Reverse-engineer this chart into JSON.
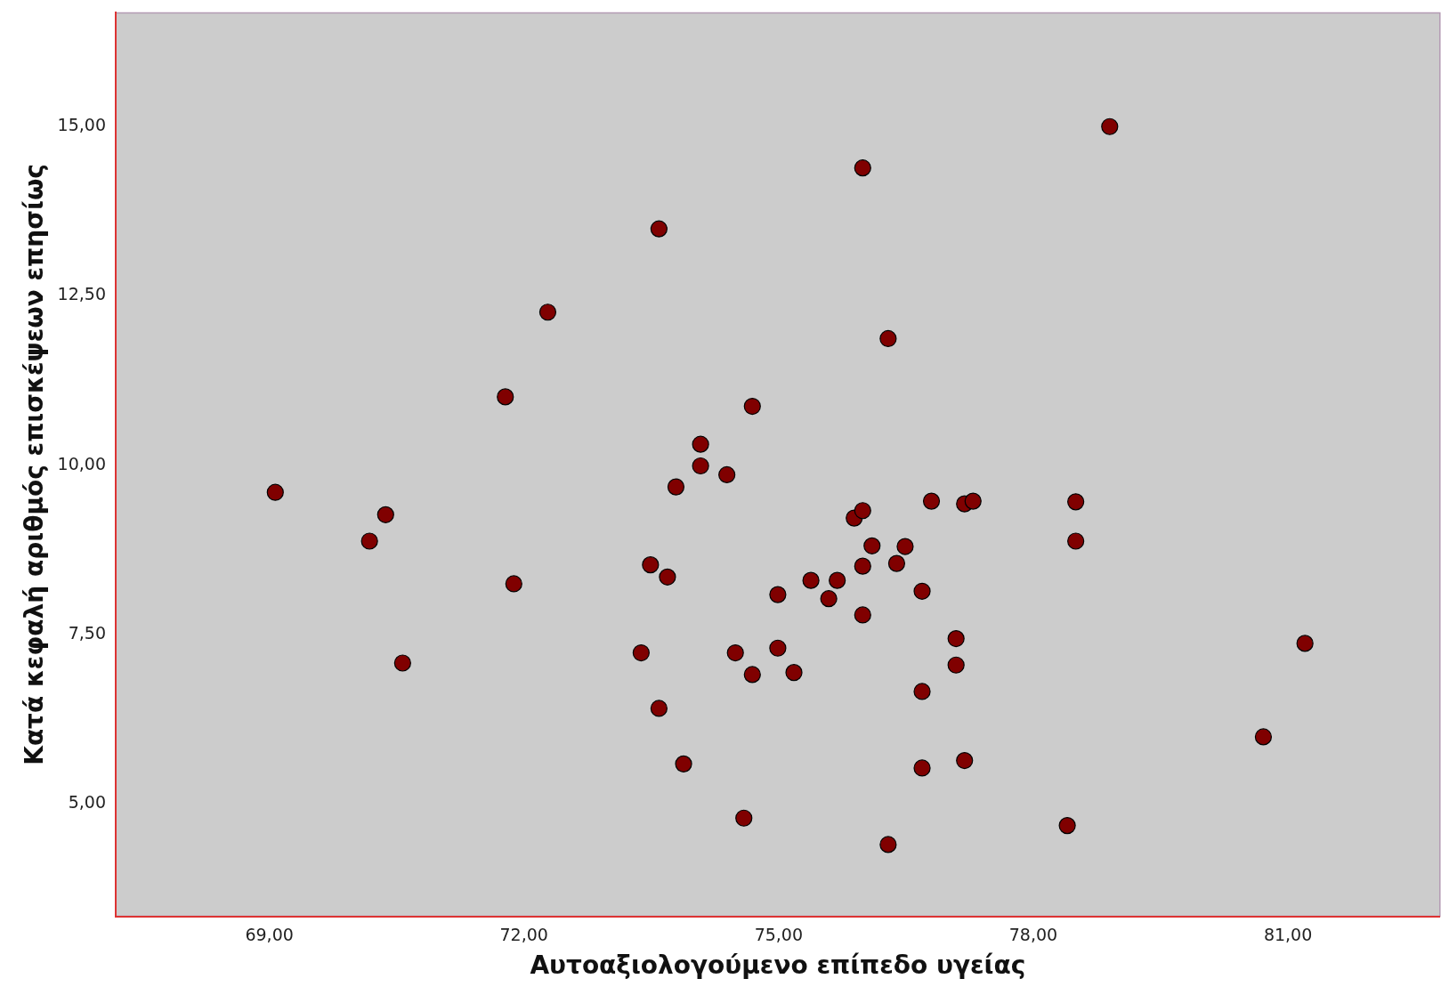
{
  "chart_data": {
    "type": "scatter",
    "xlabel": "Αυτοαξιολογούμενο επίπεδο υγείας",
    "ylabel": "Κατά κεφαλή αριθμός επισκέψεων επησίως",
    "x": [
      69.07,
      70.18,
      70.37,
      70.57,
      71.78,
      71.88,
      72.28,
      73.38,
      73.49,
      73.59,
      73.59,
      73.69,
      73.79,
      73.88,
      74.08,
      74.08,
      74.39,
      74.49,
      74.59,
      74.69,
      74.69,
      74.99,
      74.99,
      75.18,
      75.38,
      75.59,
      75.69,
      75.89,
      75.99,
      75.99,
      75.99,
      75.99,
      76.1,
      76.29,
      76.29,
      76.39,
      76.49,
      76.69,
      76.69,
      76.69,
      76.8,
      77.09,
      77.09,
      77.19,
      77.29,
      77.19,
      78.4,
      78.5,
      78.5,
      78.9,
      80.71,
      81.2
    ],
    "values": [
      9.6,
      8.88,
      9.27,
      7.08,
      11.01,
      8.25,
      12.26,
      7.23,
      8.53,
      13.49,
      6.41,
      8.35,
      9.68,
      5.59,
      10.31,
      9.99,
      9.86,
      7.23,
      4.79,
      10.87,
      6.91,
      8.09,
      7.3,
      6.94,
      8.3,
      8.03,
      8.3,
      9.22,
      14.39,
      9.33,
      8.51,
      7.79,
      8.81,
      11.87,
      4.4,
      8.55,
      8.8,
      8.14,
      6.66,
      5.53,
      9.47,
      7.44,
      7.05,
      9.43,
      9.47,
      5.64,
      4.68,
      9.46,
      8.88,
      15.0,
      5.99,
      7.37
    ],
    "color": "#800000",
    "marker": "circle",
    "grid": false,
    "legend": false,
    "xlim": [
      67.19,
      82.79
    ],
    "ylim": [
      3.34,
      16.68
    ],
    "xticks": [
      {
        "value": 69,
        "label": "69,00"
      },
      {
        "value": 72,
        "label": "72,00"
      },
      {
        "value": 75,
        "label": "75,00"
      },
      {
        "value": 78,
        "label": "78,00"
      },
      {
        "value": 81,
        "label": "81,00"
      }
    ],
    "yticks": [
      {
        "value": 5,
        "label": "5,00"
      },
      {
        "value": 7.5,
        "label": "7,50"
      },
      {
        "value": 10,
        "label": "10,00"
      },
      {
        "value": 12.5,
        "label": "12,50"
      },
      {
        "value": 15,
        "label": "15,00"
      }
    ]
  }
}
